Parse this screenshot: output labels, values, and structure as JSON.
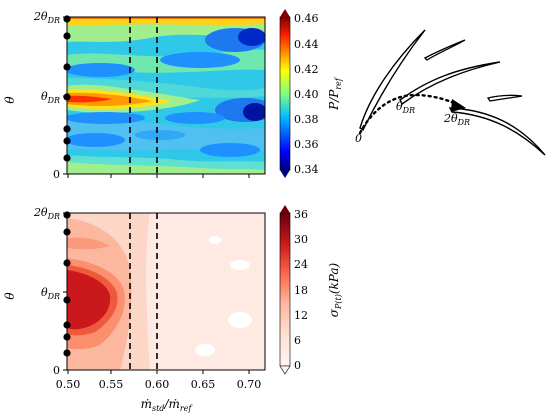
{
  "chart_data": [
    {
      "type": "heatmap",
      "panel": "top",
      "xlabel": "",
      "ylabel": "θ",
      "xlim": [
        0.49,
        0.72
      ],
      "xticks": [
        "0.50",
        "0.55",
        "0.60",
        "0.65",
        "0.70"
      ],
      "yticks": [
        "0",
        "θ_DR",
        "2θ_DR"
      ],
      "dashed_lines_x": [
        0.57,
        0.6
      ],
      "colorbar": {
        "label": "P/P_ref",
        "min": 0.34,
        "max": 0.46,
        "ticks": [
          "0.34",
          "0.36",
          "0.38",
          "0.40",
          "0.42",
          "0.44",
          "0.46"
        ],
        "colormap": "jet"
      },
      "features": [
        {
          "desc": "high pressure band",
          "theta_frac": 0.43,
          "x": [
            0.49,
            0.57
          ],
          "value": 0.45
        },
        {
          "desc": "high pressure band upper",
          "theta_frac": 0.97,
          "x": [
            0.49,
            0.72
          ],
          "value": 0.44
        },
        {
          "desc": "low pressure cores",
          "x": 0.71,
          "theta_frac": [
            0.15,
            0.38,
            0.88
          ],
          "value": 0.35
        }
      ]
    },
    {
      "type": "heatmap",
      "panel": "bottom",
      "xlabel": "ṁ_std/ṁ_ref",
      "ylabel": "θ",
      "xlim": [
        0.49,
        0.72
      ],
      "xticks": [
        "0.50",
        "0.55",
        "0.60",
        "0.65",
        "0.70"
      ],
      "yticks": [
        "0",
        "θ_DR",
        "2θ_DR"
      ],
      "dashed_lines_x": [
        0.57,
        0.6
      ],
      "colorbar": {
        "label": "σ_P(t)(kPa)",
        "min": 0,
        "max": 36,
        "ticks": [
          "0",
          "6",
          "12",
          "18",
          "24",
          "30",
          "36"
        ],
        "colormap": "Reds"
      },
      "features": [
        {
          "desc": "high fluctuation core",
          "theta_frac": 0.43,
          "x": [
            0.49,
            0.55
          ],
          "value": 30
        }
      ]
    }
  ],
  "schematic": {
    "label_origin": "0",
    "label_mid": "θ_DR",
    "label_end": "2θ_DR"
  },
  "colors": {
    "jet_low": "#00007f",
    "jet_high": "#7f0000",
    "reds_low": "#fff5f0",
    "reds_high": "#67000d"
  }
}
